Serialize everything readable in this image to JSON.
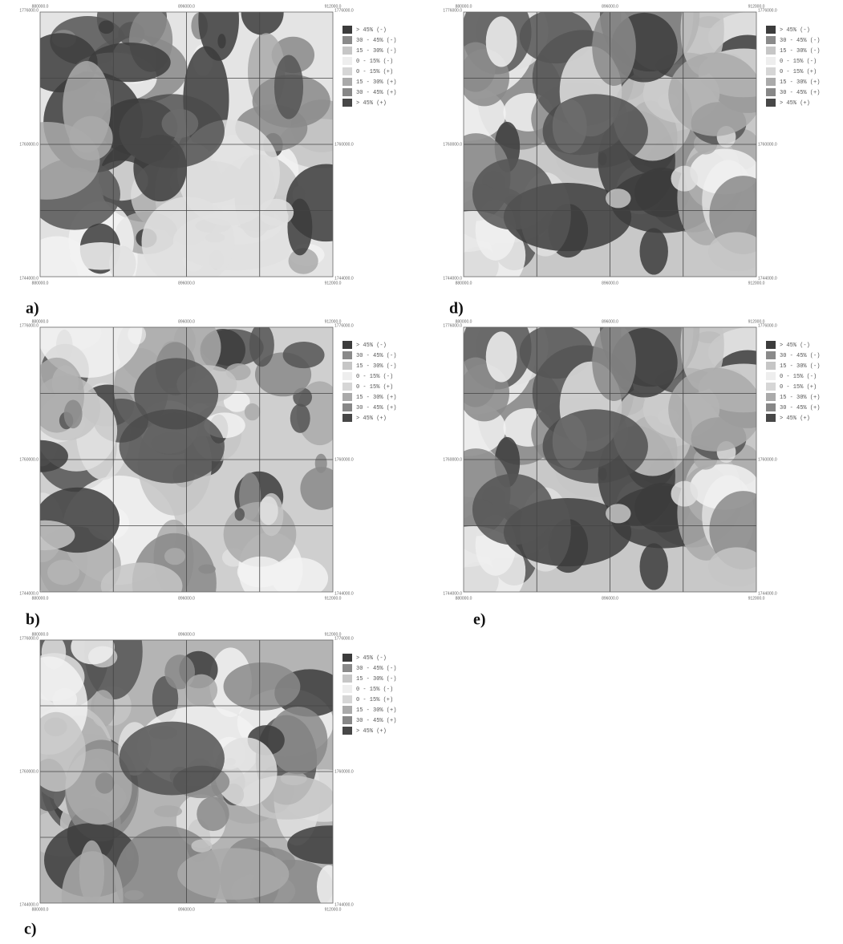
{
  "x_coords": [
    "880000.0",
    "896000.0",
    "912000.0"
  ],
  "y_coords": [
    "1776000.0",
    "1760000.0",
    "1744000.0"
  ],
  "legend": [
    {
      "label": "> 45% (-)",
      "color": "#3c3c3c"
    },
    {
      "label": "30 - 45% (-)",
      "color": "#8a8a8a"
    },
    {
      "label": "15 - 30% (-)",
      "color": "#c6c6c6"
    },
    {
      "label": "0 - 15% (-)",
      "color": "#eeeeee"
    },
    {
      "label": "0 - 15% (+)",
      "color": "#d6d6d6"
    },
    {
      "label": "15 - 30% (+)",
      "color": "#aaaaaa"
    },
    {
      "label": "30 - 45% (+)",
      "color": "#878787"
    },
    {
      "label": "> 45% (+)",
      "color": "#474747"
    }
  ],
  "panels": [
    {
      "label": "a)"
    },
    {
      "label": "d)"
    },
    {
      "label": "b)"
    },
    {
      "label": "e)"
    },
    {
      "label": "c)"
    }
  ]
}
